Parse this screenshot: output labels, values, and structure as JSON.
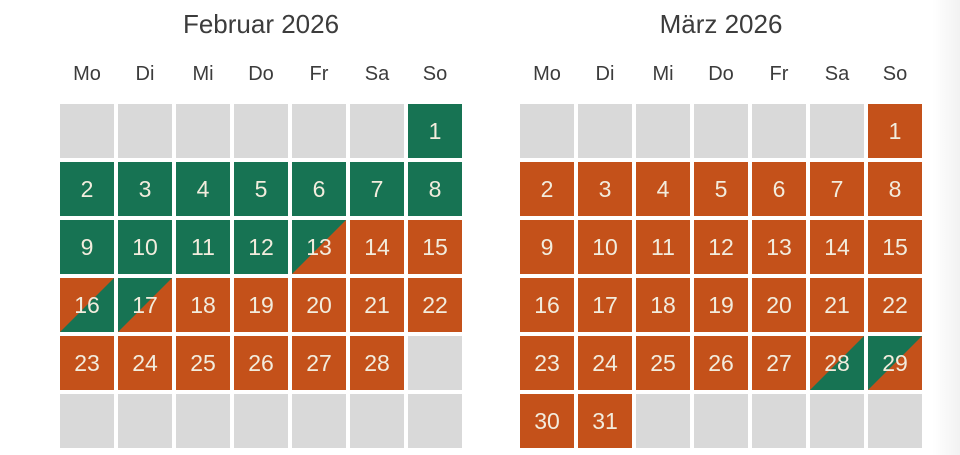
{
  "colors": {
    "background": "#ffffff",
    "heading_text": "#3c3c3c",
    "day_text": "#f2ecdd",
    "available": "#177353",
    "booked": "#c4511a",
    "blank": "#d9d9d9"
  },
  "calendars": [
    {
      "title": "Februar 2026",
      "weekdays": [
        "Mo",
        "Di",
        "Mi",
        "Do",
        "Fr",
        "Sa",
        "So"
      ],
      "cells": [
        {
          "day": "",
          "state": "blank"
        },
        {
          "day": "",
          "state": "blank"
        },
        {
          "day": "",
          "state": "blank"
        },
        {
          "day": "",
          "state": "blank"
        },
        {
          "day": "",
          "state": "blank"
        },
        {
          "day": "",
          "state": "blank"
        },
        {
          "day": "1",
          "state": "available"
        },
        {
          "day": "2",
          "state": "available"
        },
        {
          "day": "3",
          "state": "available"
        },
        {
          "day": "4",
          "state": "available"
        },
        {
          "day": "5",
          "state": "available"
        },
        {
          "day": "6",
          "state": "available"
        },
        {
          "day": "7",
          "state": "available"
        },
        {
          "day": "8",
          "state": "available"
        },
        {
          "day": "9",
          "state": "available"
        },
        {
          "day": "10",
          "state": "available"
        },
        {
          "day": "11",
          "state": "available"
        },
        {
          "day": "12",
          "state": "available"
        },
        {
          "day": "13",
          "state": "available_to_booked"
        },
        {
          "day": "14",
          "state": "booked"
        },
        {
          "day": "15",
          "state": "booked"
        },
        {
          "day": "16",
          "state": "booked_to_available"
        },
        {
          "day": "17",
          "state": "available_to_booked"
        },
        {
          "day": "18",
          "state": "booked"
        },
        {
          "day": "19",
          "state": "booked"
        },
        {
          "day": "20",
          "state": "booked"
        },
        {
          "day": "21",
          "state": "booked"
        },
        {
          "day": "22",
          "state": "booked"
        },
        {
          "day": "23",
          "state": "booked"
        },
        {
          "day": "24",
          "state": "booked"
        },
        {
          "day": "25",
          "state": "booked"
        },
        {
          "day": "26",
          "state": "booked"
        },
        {
          "day": "27",
          "state": "booked"
        },
        {
          "day": "28",
          "state": "booked"
        },
        {
          "day": "",
          "state": "blank"
        },
        {
          "day": "",
          "state": "blank"
        },
        {
          "day": "",
          "state": "blank"
        },
        {
          "day": "",
          "state": "blank"
        },
        {
          "day": "",
          "state": "blank"
        },
        {
          "day": "",
          "state": "blank"
        },
        {
          "day": "",
          "state": "blank"
        },
        {
          "day": "",
          "state": "blank"
        }
      ]
    },
    {
      "title": "März 2026",
      "weekdays": [
        "Mo",
        "Di",
        "Mi",
        "Do",
        "Fr",
        "Sa",
        "So"
      ],
      "cells": [
        {
          "day": "",
          "state": "blank"
        },
        {
          "day": "",
          "state": "blank"
        },
        {
          "day": "",
          "state": "blank"
        },
        {
          "day": "",
          "state": "blank"
        },
        {
          "day": "",
          "state": "blank"
        },
        {
          "day": "",
          "state": "blank"
        },
        {
          "day": "1",
          "state": "booked"
        },
        {
          "day": "2",
          "state": "booked"
        },
        {
          "day": "3",
          "state": "booked"
        },
        {
          "day": "4",
          "state": "booked"
        },
        {
          "day": "5",
          "state": "booked"
        },
        {
          "day": "6",
          "state": "booked"
        },
        {
          "day": "7",
          "state": "booked"
        },
        {
          "day": "8",
          "state": "booked"
        },
        {
          "day": "9",
          "state": "booked"
        },
        {
          "day": "10",
          "state": "booked"
        },
        {
          "day": "11",
          "state": "booked"
        },
        {
          "day": "12",
          "state": "booked"
        },
        {
          "day": "13",
          "state": "booked"
        },
        {
          "day": "14",
          "state": "booked"
        },
        {
          "day": "15",
          "state": "booked"
        },
        {
          "day": "16",
          "state": "booked"
        },
        {
          "day": "17",
          "state": "booked"
        },
        {
          "day": "18",
          "state": "booked"
        },
        {
          "day": "19",
          "state": "booked"
        },
        {
          "day": "20",
          "state": "booked"
        },
        {
          "day": "21",
          "state": "booked"
        },
        {
          "day": "22",
          "state": "booked"
        },
        {
          "day": "23",
          "state": "booked"
        },
        {
          "day": "24",
          "state": "booked"
        },
        {
          "day": "25",
          "state": "booked"
        },
        {
          "day": "26",
          "state": "booked"
        },
        {
          "day": "27",
          "state": "booked"
        },
        {
          "day": "28",
          "state": "booked_to_available"
        },
        {
          "day": "29",
          "state": "available_to_booked"
        },
        {
          "day": "30",
          "state": "booked"
        },
        {
          "day": "31",
          "state": "booked"
        },
        {
          "day": "",
          "state": "blank"
        },
        {
          "day": "",
          "state": "blank"
        },
        {
          "day": "",
          "state": "blank"
        },
        {
          "day": "",
          "state": "blank"
        },
        {
          "day": "",
          "state": "blank"
        }
      ]
    }
  ]
}
